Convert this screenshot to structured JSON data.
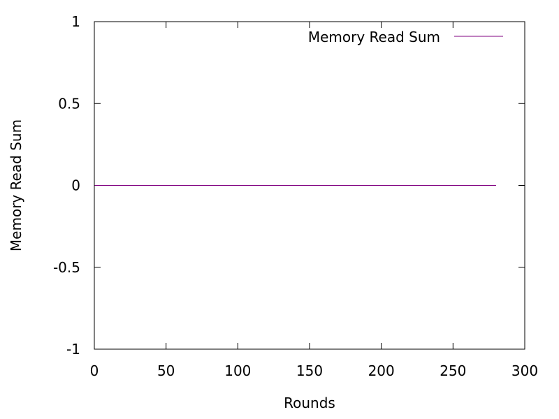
{
  "chart_data": {
    "type": "line",
    "title": "",
    "xlabel": "Rounds",
    "ylabel": "Memory Read Sum",
    "xlim": [
      0,
      300
    ],
    "ylim": [
      -1,
      1
    ],
    "x_ticks": [
      0,
      50,
      100,
      150,
      200,
      250,
      300
    ],
    "y_ticks": [
      -1,
      -0.5,
      0,
      0.5,
      1
    ],
    "x_tick_labels": [
      "0",
      "50",
      "100",
      "150",
      "200",
      "250",
      "300"
    ],
    "y_tick_labels": [
      "-1",
      "-0.5",
      "0",
      "0.5",
      "1"
    ],
    "grid": false,
    "legend_position": "top-right",
    "series": [
      {
        "name": "Memory Read Sum",
        "color": "#800080",
        "x": [
          0,
          280
        ],
        "y": [
          0,
          0
        ]
      }
    ]
  }
}
